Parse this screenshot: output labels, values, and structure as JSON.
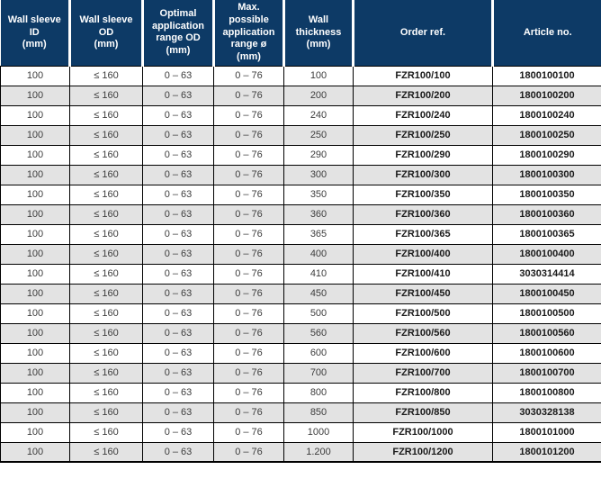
{
  "colors": {
    "header_bg": "#0d3a66",
    "header_text": "#ffffff",
    "row_alt_bg": "#e3e3e3",
    "body_text": "#3d3d3d",
    "emphasis_text": "#1a1a1a",
    "border": "#000000"
  },
  "table": {
    "columns": [
      "Wall sleeve ID\n(mm)",
      "Wall sleeve OD\n(mm)",
      "Optimal\napplication\nrange OD\n(mm)",
      "Max. possible\napplication\nrange ø (mm)",
      "Wall thickness\n(mm)",
      "Order ref.",
      "Article no."
    ],
    "rows": [
      [
        "100",
        "≤ 160",
        "0 – 63",
        "0 – 76",
        "100",
        "FZR100/100",
        "1800100100"
      ],
      [
        "100",
        "≤ 160",
        "0 – 63",
        "0 – 76",
        "200",
        "FZR100/200",
        "1800100200"
      ],
      [
        "100",
        "≤ 160",
        "0 – 63",
        "0 – 76",
        "240",
        "FZR100/240",
        "1800100240"
      ],
      [
        "100",
        "≤ 160",
        "0 – 63",
        "0 – 76",
        "250",
        "FZR100/250",
        "1800100250"
      ],
      [
        "100",
        "≤ 160",
        "0 – 63",
        "0 – 76",
        "290",
        "FZR100/290",
        "1800100290"
      ],
      [
        "100",
        "≤ 160",
        "0 – 63",
        "0 – 76",
        "300",
        "FZR100/300",
        "1800100300"
      ],
      [
        "100",
        "≤ 160",
        "0 – 63",
        "0 – 76",
        "350",
        "FZR100/350",
        "1800100350"
      ],
      [
        "100",
        "≤ 160",
        "0 – 63",
        "0 – 76",
        "360",
        "FZR100/360",
        "1800100360"
      ],
      [
        "100",
        "≤ 160",
        "0 – 63",
        "0 – 76",
        "365",
        "FZR100/365",
        "1800100365"
      ],
      [
        "100",
        "≤ 160",
        "0 – 63",
        "0 – 76",
        "400",
        "FZR100/400",
        "1800100400"
      ],
      [
        "100",
        "≤ 160",
        "0 – 63",
        "0 – 76",
        "410",
        "FZR100/410",
        "3030314414"
      ],
      [
        "100",
        "≤ 160",
        "0 – 63",
        "0 – 76",
        "450",
        "FZR100/450",
        "1800100450"
      ],
      [
        "100",
        "≤ 160",
        "0 – 63",
        "0 – 76",
        "500",
        "FZR100/500",
        "1800100500"
      ],
      [
        "100",
        "≤ 160",
        "0 – 63",
        "0 – 76",
        "560",
        "FZR100/560",
        "1800100560"
      ],
      [
        "100",
        "≤ 160",
        "0 – 63",
        "0 – 76",
        "600",
        "FZR100/600",
        "1800100600"
      ],
      [
        "100",
        "≤ 160",
        "0 – 63",
        "0 – 76",
        "700",
        "FZR100/700",
        "1800100700"
      ],
      [
        "100",
        "≤ 160",
        "0 – 63",
        "0 – 76",
        "800",
        "FZR100/800",
        "1800100800"
      ],
      [
        "100",
        "≤ 160",
        "0 – 63",
        "0 – 76",
        "850",
        "FZR100/850",
        "3030328138"
      ],
      [
        "100",
        "≤ 160",
        "0 – 63",
        "0 – 76",
        "1000",
        "FZR100/1000",
        "1800101000"
      ],
      [
        "100",
        "≤ 160",
        "0 – 63",
        "0 – 76",
        "1.200",
        "FZR100/1200",
        "1800101200"
      ]
    ]
  }
}
